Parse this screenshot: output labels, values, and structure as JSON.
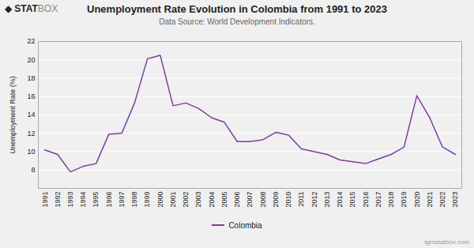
{
  "chart_data": {
    "type": "line",
    "title": "Unemployment Rate Evolution in Colombia from 1991 to 2023",
    "subtitle": "Data Source: World Development Indicators.",
    "ylabel": "Unemployment Rate (%)",
    "x": [
      1991,
      1992,
      1993,
      1994,
      1995,
      1996,
      1997,
      1998,
      1999,
      2000,
      2001,
      2002,
      2003,
      2004,
      2005,
      2006,
      2007,
      2008,
      2009,
      2010,
      2011,
      2012,
      2013,
      2014,
      2015,
      2016,
      2017,
      2018,
      2019,
      2020,
      2021,
      2022,
      2023
    ],
    "series": [
      {
        "name": "Colombia",
        "color": "#7b3f9e",
        "values": [
          10.2,
          9.7,
          7.8,
          8.4,
          8.7,
          11.9,
          12.0,
          15.3,
          20.1,
          20.5,
          15.0,
          15.3,
          14.7,
          13.7,
          13.2,
          11.1,
          11.1,
          11.3,
          12.1,
          11.8,
          10.3,
          10.0,
          9.7,
          9.1,
          8.9,
          8.7,
          9.2,
          9.7,
          10.5,
          16.1,
          13.7,
          10.5,
          9.7
        ]
      }
    ],
    "xlim": [
      1990.5,
      2023.5
    ],
    "xticks": [
      1991,
      1992,
      1993,
      1994,
      1995,
      1996,
      1997,
      1998,
      1999,
      2000,
      2001,
      2002,
      2003,
      2004,
      2005,
      2006,
      2007,
      2008,
      2009,
      2010,
      2011,
      2012,
      2013,
      2014,
      2015,
      2016,
      2017,
      2018,
      2019,
      2020,
      2021,
      2022,
      2023
    ],
    "ylim": [
      6,
      22
    ],
    "yticks": [
      8,
      10,
      12,
      14,
      16,
      18,
      20,
      22
    ],
    "grid": true,
    "legend": "bottom",
    "annotations": [
      "◆",
      "STAT",
      "BOX",
      "tgmstatbox.com"
    ]
  }
}
